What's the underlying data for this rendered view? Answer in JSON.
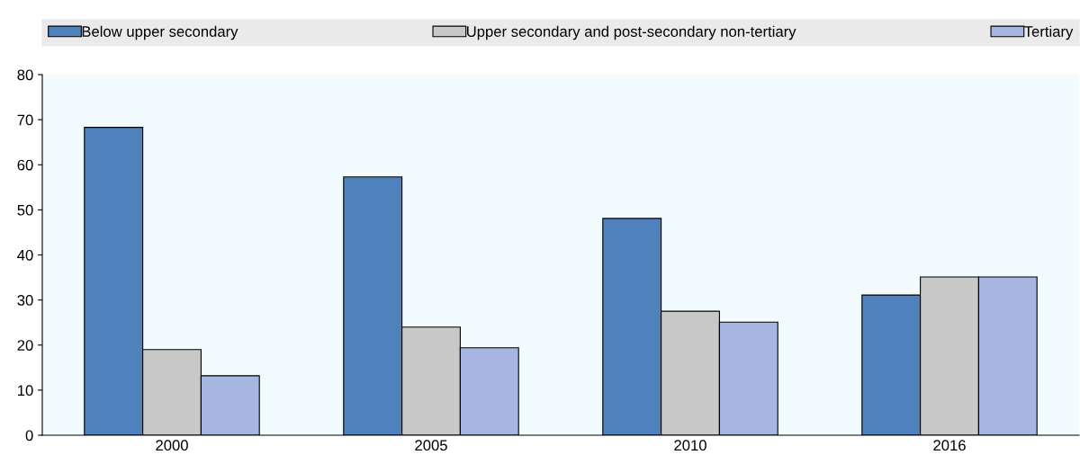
{
  "chart_data": {
    "type": "bar",
    "categories": [
      "2000",
      "2005",
      "2010",
      "2016"
    ],
    "series": [
      {
        "name": "Below upper secondary",
        "color": "#4f81bd",
        "values": [
          68.3,
          57.3,
          48.1,
          31.1
        ]
      },
      {
        "name": "Upper secondary and post-secondary non-tertiary",
        "color": "#c8c8c8",
        "values": [
          19.0,
          24.0,
          27.5,
          35.1
        ]
      },
      {
        "name": "Tertiary",
        "color": "#a6b6e0",
        "values": [
          13.2,
          19.4,
          25.1,
          35.1
        ]
      }
    ],
    "ylim": [
      0,
      80
    ],
    "yticks": [
      0,
      10,
      20,
      30,
      40,
      50,
      60,
      70,
      80
    ],
    "grid": false,
    "legend": "top"
  }
}
